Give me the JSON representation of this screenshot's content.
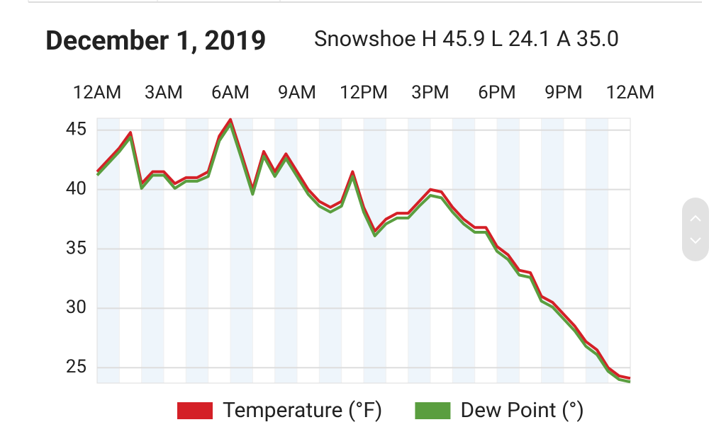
{
  "chart_data": {
    "type": "line",
    "title": "December 1, 2019",
    "subtitle": "Snowshoe  H 45.9 L 24.1 A 35.0",
    "xlim": [
      0,
      24
    ],
    "xticks": [
      {
        "value": 0,
        "label": "12AM"
      },
      {
        "value": 3,
        "label": "3AM"
      },
      {
        "value": 6,
        "label": "6AM"
      },
      {
        "value": 9,
        "label": "9AM"
      },
      {
        "value": 12,
        "label": "12PM"
      },
      {
        "value": 15,
        "label": "3PM"
      },
      {
        "value": 18,
        "label": "6PM"
      },
      {
        "value": 21,
        "label": "9PM"
      },
      {
        "value": 24,
        "label": "12AM"
      }
    ],
    "ylim": [
      23.7,
      46
    ],
    "yticks": [
      25,
      30,
      35,
      40,
      45
    ],
    "grid": true,
    "legend": "bottom",
    "x": [
      0,
      0.5,
      1,
      1.5,
      2,
      2.5,
      3,
      3.5,
      4,
      4.5,
      5,
      5.5,
      6,
      6.5,
      7,
      7.5,
      8,
      8.5,
      9,
      9.5,
      10,
      10.5,
      11,
      11.5,
      12,
      12.5,
      13,
      13.5,
      14,
      14.5,
      15,
      15.5,
      16,
      16.5,
      17,
      17.5,
      18,
      18.5,
      19,
      19.5,
      20,
      20.5,
      21,
      21.5,
      22,
      22.5,
      23,
      23.5,
      24
    ],
    "series": [
      {
        "name": "Temperature (°F)",
        "color": "#d42027",
        "values": [
          41.5,
          42.5,
          43.5,
          44.8,
          40.5,
          41.5,
          41.5,
          40.5,
          41,
          41,
          41.5,
          44.5,
          45.9,
          43,
          40,
          43.2,
          41.5,
          43,
          41.5,
          40,
          39,
          38.5,
          39,
          41.5,
          38.5,
          36.5,
          37.5,
          38,
          38,
          39,
          40,
          39.8,
          38.5,
          37.5,
          36.8,
          36.8,
          35.2,
          34.5,
          33.2,
          33,
          31,
          30.5,
          29.5,
          28.5,
          27.2,
          26.5,
          25,
          24.3,
          24.1
        ]
      },
      {
        "name": "Dew Point (°)",
        "color": "#5a9e3f",
        "values": [
          41.2,
          42.2,
          43.2,
          44.4,
          40.1,
          41.2,
          41.2,
          40.1,
          40.7,
          40.7,
          41.1,
          44.1,
          45.5,
          42.6,
          39.6,
          42.8,
          41.1,
          42.6,
          41.1,
          39.6,
          38.6,
          38.1,
          38.6,
          41.1,
          38.1,
          36.1,
          37.1,
          37.6,
          37.6,
          38.6,
          39.5,
          39.3,
          38.1,
          37.1,
          36.4,
          36.4,
          34.8,
          34.1,
          32.8,
          32.6,
          30.6,
          30.1,
          29.1,
          28.1,
          26.8,
          26.1,
          24.7,
          24,
          23.8
        ]
      }
    ]
  }
}
